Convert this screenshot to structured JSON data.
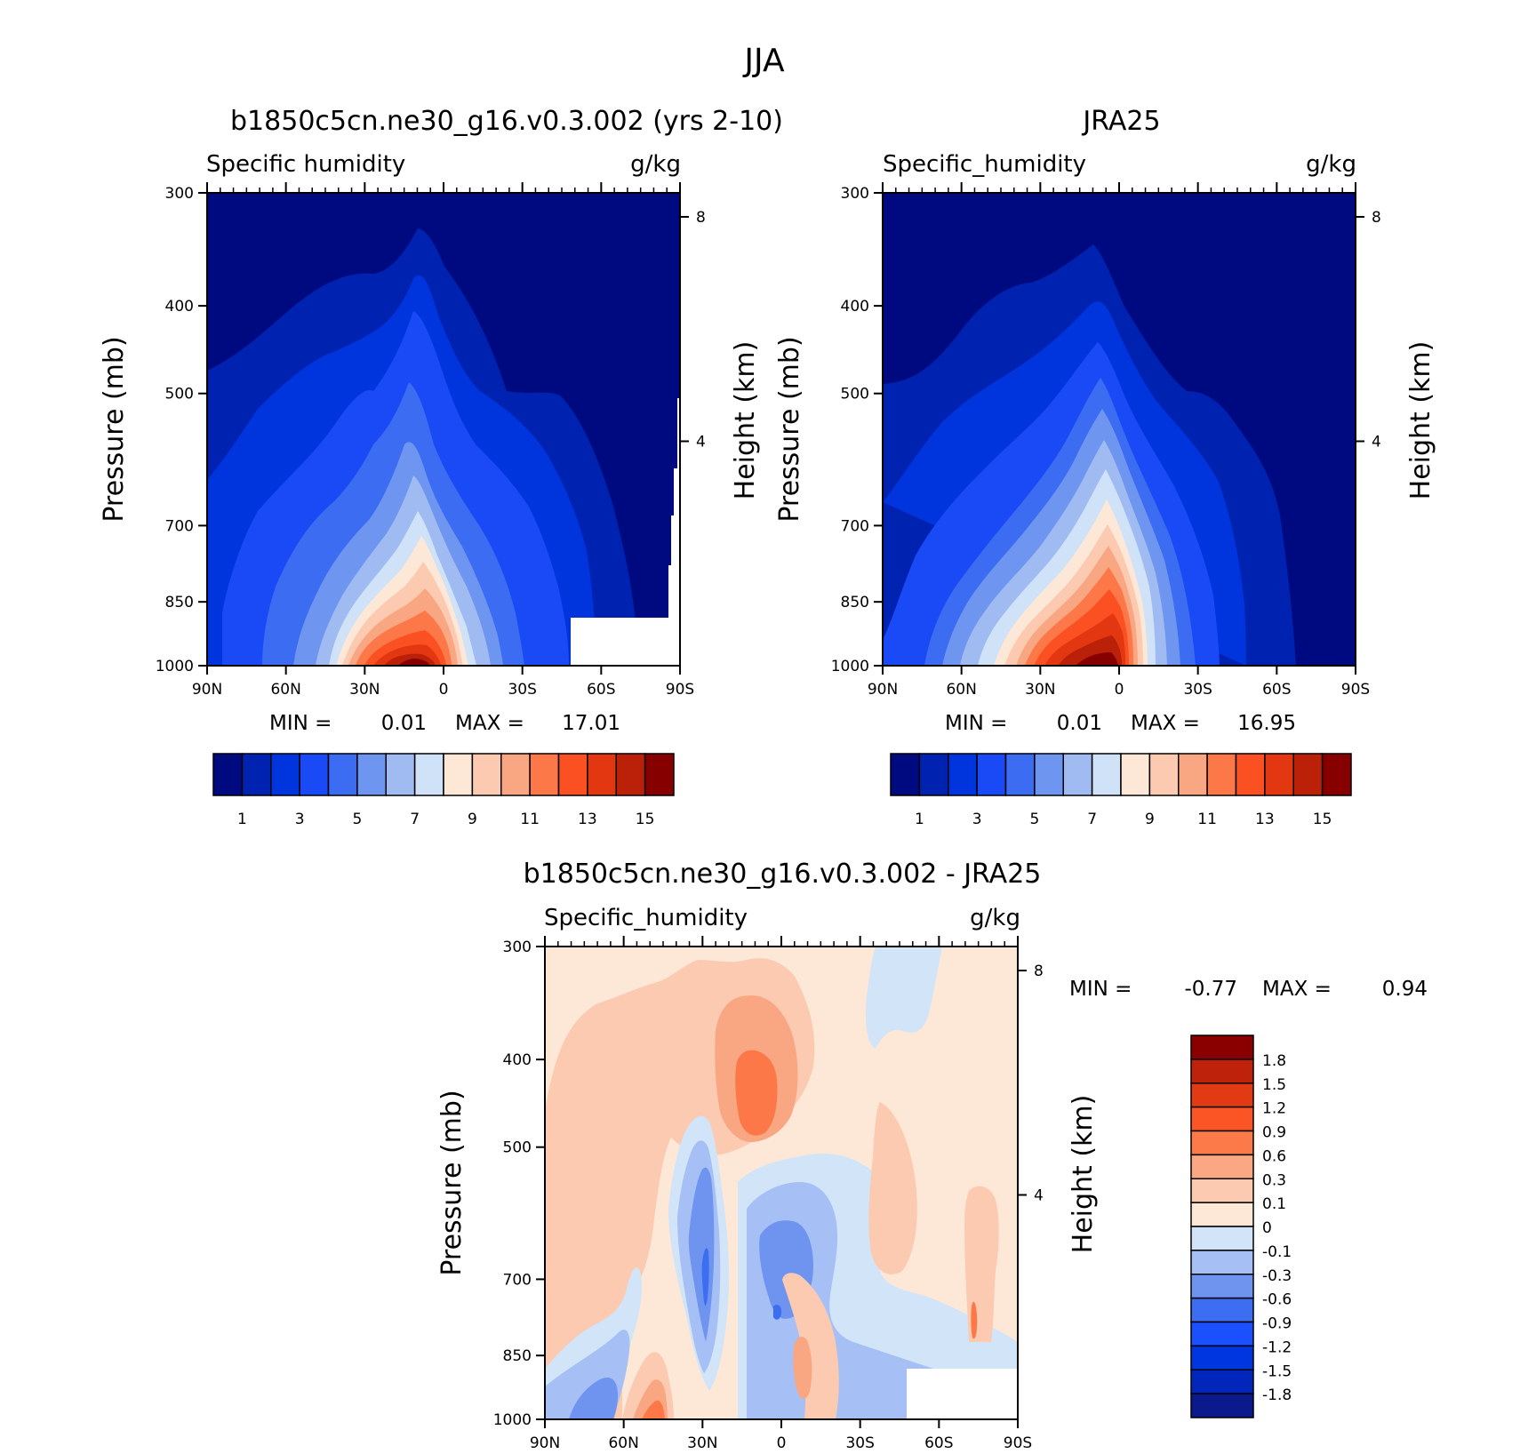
{
  "figure": {
    "title": "JJA",
    "colors": {
      "seq": [
        "#000a80",
        "#0022b0",
        "#0034dd",
        "#1a4af5",
        "#3b6cf2",
        "#6e95f0",
        "#9fbbf2",
        "#cfe2f7",
        "#fde8d8",
        "#fbcab0",
        "#f9a683",
        "#fc7848",
        "#fb5022",
        "#e33712",
        "#bb2108",
        "#860000"
      ],
      "div": [
        "#0a1a8c",
        "#0026bc",
        "#0036e0",
        "#1a50ff",
        "#3d6ef2",
        "#6e94f0",
        "#a6c0f5",
        "#d2e4f8",
        "#fde8d8",
        "#fbcab0",
        "#faa784",
        "#fc7a4a",
        "#fb5526",
        "#e23b14",
        "#be220a",
        "#8a0000"
      ]
    },
    "panels": [
      {
        "title": "b1850c5cn.ne30_g16.v0.3.002 (yrs 2-10)",
        "left_label": "Specific humidity",
        "right_label": "g/kg",
        "min_label": "MIN =",
        "min_value": "0.01",
        "max_label": "MAX =",
        "max_value": "17.01"
      },
      {
        "title": "JRA25",
        "left_label": "Specific_humidity",
        "right_label": "g/kg",
        "min_label": "MIN =",
        "min_value": "0.01",
        "max_label": "MAX =",
        "max_value": "16.95"
      },
      {
        "title": "b1850c5cn.ne30_g16.v0.3.002 - JRA25",
        "left_label": "Specific_humidity",
        "right_label": "g/kg",
        "min_label": "MIN =",
        "min_value": "-0.77",
        "max_label": "MAX =",
        "max_value": "0.94"
      }
    ],
    "axes": {
      "ylabel": "Pressure (mb)",
      "y2label": "Height (km)",
      "yticks": [
        "300",
        "400",
        "500",
        "700",
        "850",
        "1000"
      ],
      "y2ticks": [
        "8",
        "4"
      ],
      "xticks": [
        "90N",
        "60N",
        "30N",
        "0",
        "30S",
        "60S",
        "90S"
      ]
    },
    "colorbar_top": {
      "labels": [
        "1",
        "3",
        "5",
        "7",
        "9",
        "11",
        "13",
        "15"
      ]
    },
    "colorbar_diff": {
      "labels": [
        "1.8",
        "1.5",
        "1.2",
        "0.9",
        "0.6",
        "0.3",
        "0.1",
        "0",
        "-0.1",
        "-0.3",
        "-0.6",
        "-0.9",
        "-1.2",
        "-1.5",
        "-1.8"
      ]
    }
  },
  "chart_data": [
    {
      "type": "heatmap",
      "title": "b1850c5cn.ne30_g16.v0.3.002 (yrs 2-10)",
      "subtitle": "Specific humidity",
      "units": "g/kg",
      "xlabel": "",
      "ylabel": "Pressure (mb)",
      "y2label": "Height (km)",
      "x_ticks": [
        "90N",
        "60N",
        "30N",
        "0",
        "30S",
        "60S",
        "90S"
      ],
      "y_ticks": [
        300,
        400,
        500,
        700,
        850,
        1000
      ],
      "y2_ticks": [
        8,
        4
      ],
      "levels": [
        1,
        2,
        3,
        4,
        5,
        6,
        7,
        8,
        9,
        10,
        11,
        12,
        13,
        14,
        15
      ],
      "min": 0.01,
      "max": 17.01,
      "peak": {
        "lat": -10,
        "pressure_mb": 1000
      }
    },
    {
      "type": "heatmap",
      "title": "JRA25",
      "subtitle": "Specific_humidity",
      "units": "g/kg",
      "ylabel": "Pressure (mb)",
      "y2label": "Height (km)",
      "x_ticks": [
        "90N",
        "60N",
        "30N",
        "0",
        "30S",
        "60S",
        "90S"
      ],
      "y_ticks": [
        300,
        400,
        500,
        700,
        850,
        1000
      ],
      "y2_ticks": [
        8,
        4
      ],
      "levels": [
        1,
        2,
        3,
        4,
        5,
        6,
        7,
        8,
        9,
        10,
        11,
        12,
        13,
        14,
        15
      ],
      "min": 0.01,
      "max": 16.95,
      "peak": {
        "lat": -8,
        "pressure_mb": 1000
      }
    },
    {
      "type": "heatmap",
      "title": "b1850c5cn.ne30_g16.v0.3.002 - JRA25",
      "subtitle": "Specific_humidity",
      "units": "g/kg",
      "ylabel": "Pressure (mb)",
      "y2label": "Height (km)",
      "x_ticks": [
        "90N",
        "60N",
        "30N",
        "0",
        "30S",
        "60S",
        "90S"
      ],
      "y_ticks": [
        300,
        400,
        500,
        700,
        850,
        1000
      ],
      "y2_ticks": [
        8,
        4
      ],
      "levels": [
        -1.8,
        -1.5,
        -1.2,
        -0.9,
        -0.6,
        -0.3,
        -0.1,
        0,
        0.1,
        0.3,
        0.6,
        0.9,
        1.2,
        1.5,
        1.8
      ],
      "min": -0.77,
      "max": 0.94
    }
  ]
}
